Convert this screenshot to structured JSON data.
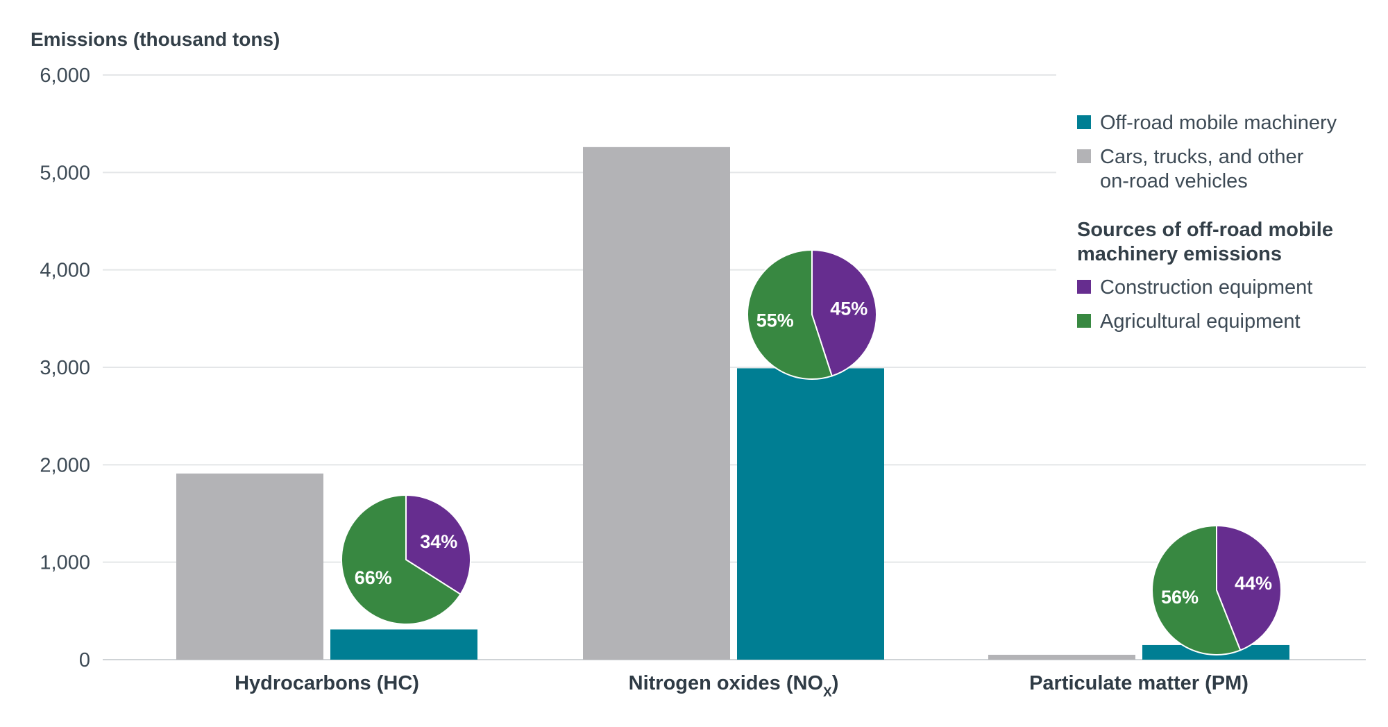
{
  "chart_data": {
    "type": "bar",
    "title": "",
    "ylabel": "Emissions (thousand tons)",
    "xlabel": "",
    "ylim": [
      0,
      6000
    ],
    "yticks": [
      0,
      1000,
      2000,
      3000,
      4000,
      5000,
      6000
    ],
    "ytick_labels": [
      "0",
      "1,000",
      "2,000",
      "3,000",
      "4,000",
      "5,000",
      "6,000"
    ],
    "grid": true,
    "categories": [
      {
        "label": "Hydrocarbons (HC)",
        "sub": ""
      },
      {
        "label": "Nitrogen oxides (NO",
        "sub": "X",
        "after": ")"
      },
      {
        "label": "Particulate matter (PM)",
        "sub": ""
      }
    ],
    "series": [
      {
        "name": "Cars, trucks, and other on-road vehicles",
        "color": "#b3b3b6",
        "values": [
          1910,
          5260,
          50
        ]
      },
      {
        "name": "Off-road mobile machinery",
        "color": "#007e93",
        "values": [
          310,
          2990,
          150
        ]
      }
    ],
    "pies": [
      {
        "category": "Hydrocarbons (HC)",
        "slices": [
          {
            "name": "Construction equipment",
            "value": 34,
            "label": "34%"
          },
          {
            "name": "Agricultural equipment",
            "value": 66,
            "label": "66%"
          }
        ]
      },
      {
        "category": "Nitrogen oxides (NOX)",
        "slices": [
          {
            "name": "Construction equipment",
            "value": 45,
            "label": "45%"
          },
          {
            "name": "Agricultural equipment",
            "value": 55,
            "label": "55%"
          }
        ]
      },
      {
        "category": "Particulate matter (PM)",
        "slices": [
          {
            "name": "Construction equipment",
            "value": 44,
            "label": "44%"
          },
          {
            "name": "Agricultural equipment",
            "value": 56,
            "label": "56%"
          }
        ]
      }
    ],
    "legend": {
      "placement": "top-right",
      "items": [
        {
          "lines": [
            "Off-road mobile machinery"
          ],
          "color": "#007e93"
        },
        {
          "lines": [
            "Cars, trucks, and other",
            "on-road vehicles"
          ],
          "color": "#b3b3b6"
        }
      ],
      "pie_heading": [
        "Sources of off-road mobile",
        "machinery emissions"
      ],
      "pie_items": [
        {
          "lines": [
            "Construction equipment"
          ],
          "color": "#662d8f"
        },
        {
          "lines": [
            "Agricultural equipment"
          ],
          "color": "#388841"
        }
      ]
    }
  }
}
